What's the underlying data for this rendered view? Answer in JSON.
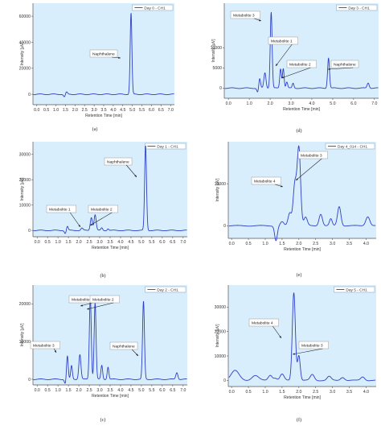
{
  "chart_data": [
    {
      "panel_label": "(a)",
      "type": "line",
      "legend": "Day 0 - CH1",
      "xlabel": "Retention Time [min]",
      "ylabel": "Intensity [µV]",
      "xlim": [
        -0.2,
        7.2
      ],
      "ylim": [
        -8000,
        70000
      ],
      "xticks": [
        "0.0",
        "0.5",
        "1.0",
        "1.5",
        "2.0",
        "2.5",
        "3.0",
        "3.5",
        "4.0",
        "4.5",
        "5.0",
        "5.5",
        "6.0",
        "6.5",
        "7.0"
      ],
      "yticks": [
        "0",
        "20000",
        "40000",
        "60000"
      ],
      "yticks_values": [
        0,
        20000,
        40000,
        60000
      ],
      "peaks": [
        {
          "x": 1.45,
          "h": -2200,
          "w": 0.05
        },
        {
          "x": 1.55,
          "h": 1800,
          "w": 0.05
        },
        {
          "x": 4.93,
          "h": 62500,
          "w": 0.045
        }
      ],
      "annotations": [
        {
          "text": "Naphthalene",
          "peak_x": 4.93
        }
      ]
    },
    {
      "panel_label": "(b)",
      "type": "line",
      "legend": "Day 1 - CH1",
      "xlabel": "Retention Time [min]",
      "ylabel": "Intensity [µV]",
      "xlim": [
        -0.2,
        7.2
      ],
      "ylim": [
        -2500,
        35000
      ],
      "xticks": [
        "0.0",
        "0.5",
        "1.0",
        "1.5",
        "2.0",
        "2.5",
        "3.0",
        "3.5",
        "4.0",
        "4.5",
        "5.0",
        "5.5",
        "6.0",
        "6.5",
        "7.0"
      ],
      "yticks": [
        "0",
        "10000",
        "20000",
        "30000"
      ],
      "yticks_values": [
        0,
        10000,
        20000,
        30000
      ],
      "peaks": [
        {
          "x": 1.35,
          "h": -1200,
          "w": 0.04
        },
        {
          "x": 1.45,
          "h": 1600,
          "w": 0.04
        },
        {
          "x": 2.15,
          "h": 900,
          "w": 0.05
        },
        {
          "x": 2.6,
          "h": 5200,
          "w": 0.05
        },
        {
          "x": 2.78,
          "h": 6200,
          "w": 0.05
        },
        {
          "x": 3.1,
          "h": 1000,
          "w": 0.04
        },
        {
          "x": 3.4,
          "h": 700,
          "w": 0.04
        },
        {
          "x": 5.2,
          "h": 33500,
          "w": 0.045
        }
      ],
      "annotations": [
        {
          "text": "Metabolite 1",
          "peak_x": 2.6
        },
        {
          "text": "Metabolite 2",
          "peak_x": 2.78
        },
        {
          "text": "Naphthalene",
          "peak_x": 5.2
        }
      ]
    },
    {
      "panel_label": "(c)",
      "type": "line",
      "legend": "Day 2 - CH1",
      "xlabel": "Retention Time [min]",
      "ylabel": "Intensity [µV]",
      "xlim": [
        -0.2,
        7.2
      ],
      "ylim": [
        -1500,
        25000
      ],
      "xticks": [
        "0.0",
        "0.5",
        "1.0",
        "1.5",
        "2.0",
        "2.5",
        "3.0",
        "3.5",
        "4.0",
        "4.5",
        "5.0",
        "5.5",
        "6.0",
        "6.5",
        "7.0"
      ],
      "yticks": [
        "0",
        "10000",
        "20000"
      ],
      "yticks_values": [
        0,
        10000,
        20000
      ],
      "peaks": [
        {
          "x": 1.35,
          "h": -1200,
          "w": 0.04
        },
        {
          "x": 1.45,
          "h": 6200,
          "w": 0.04
        },
        {
          "x": 1.65,
          "h": 3600,
          "w": 0.04
        },
        {
          "x": 2.05,
          "h": 6600,
          "w": 0.05
        },
        {
          "x": 2.55,
          "h": 22000,
          "w": 0.045
        },
        {
          "x": 2.78,
          "h": 20300,
          "w": 0.045
        },
        {
          "x": 3.1,
          "h": 3700,
          "w": 0.04
        },
        {
          "x": 3.4,
          "h": 3300,
          "w": 0.04
        },
        {
          "x": 5.1,
          "h": 20700,
          "w": 0.045
        },
        {
          "x": 6.7,
          "h": 1800,
          "w": 0.05
        }
      ],
      "annotations": [
        {
          "text": "Metabolite 3",
          "peak_x": 2.05
        },
        {
          "text": "Metabolite 1",
          "peak_x": 2.55
        },
        {
          "text": "Metabolite 2",
          "peak_x": 2.78
        },
        {
          "text": "Naphthalene",
          "peak_x": 5.1
        }
      ]
    },
    {
      "panel_label": "(d)",
      "type": "line",
      "legend": "Day 3 - CH1",
      "xlabel": "Retention Time [min]",
      "ylabel": "Intensity [µV]",
      "xlim": [
        -0.2,
        7.2
      ],
      "ylim": [
        -2500,
        21000
      ],
      "xticks": [
        "0.0",
        "1.0",
        "2.0",
        "3.0",
        "4.0",
        "5.0",
        "6.0",
        "7.0"
      ],
      "yticks": [
        "0",
        "5000",
        "10000"
      ],
      "yticks_values": [
        0,
        5000,
        10000
      ],
      "peaks": [
        {
          "x": 1.4,
          "h": -1000,
          "w": 0.04
        },
        {
          "x": 1.5,
          "h": 2300,
          "w": 0.04
        },
        {
          "x": 1.75,
          "h": 3800,
          "w": 0.05
        },
        {
          "x": 2.05,
          "h": 18800,
          "w": 0.045
        },
        {
          "x": 2.5,
          "h": 4800,
          "w": 0.04
        },
        {
          "x": 2.63,
          "h": 4900,
          "w": 0.04
        },
        {
          "x": 2.8,
          "h": 1500,
          "w": 0.04
        },
        {
          "x": 3.1,
          "h": 1200,
          "w": 0.04
        },
        {
          "x": 4.8,
          "h": 7500,
          "w": 0.045
        },
        {
          "x": 6.7,
          "h": 1300,
          "w": 0.05
        }
      ],
      "annotations": [
        {
          "text": "Metabolite 3",
          "peak_x": 2.05
        },
        {
          "text": "Metabolite 1",
          "peak_x": 2.5
        },
        {
          "text": "Metabolite 2",
          "peak_x": 2.63
        },
        {
          "text": "Naphthalene",
          "peak_x": 4.8
        }
      ]
    },
    {
      "panel_label": "(e)",
      "type": "line",
      "legend": "Day 4_014 - CH1",
      "xlabel": "Retention Time [min]",
      "ylabel": "Intensity [µV]",
      "xlim": [
        -0.1,
        4.3
      ],
      "ylim": [
        -3000,
        20000
      ],
      "xticks": [
        "0.0",
        "0.5",
        "1.0",
        "1.5",
        "2.0",
        "2.5",
        "3.0",
        "3.5",
        "4.0"
      ],
      "yticks": [
        "0",
        "10000"
      ],
      "yticks_values": [
        0,
        10000
      ],
      "peaks": [
        {
          "x": 1.32,
          "h": -3500,
          "w": 0.04
        },
        {
          "x": 1.5,
          "h": 900,
          "w": 0.05
        },
        {
          "x": 1.73,
          "h": 3000,
          "w": 0.05
        },
        {
          "x": 1.88,
          "h": 9800,
          "w": 0.05
        },
        {
          "x": 2.0,
          "h": 18500,
          "w": 0.05
        },
        {
          "x": 2.2,
          "h": 2000,
          "w": 0.05
        },
        {
          "x": 2.65,
          "h": 2800,
          "w": 0.05
        },
        {
          "x": 2.95,
          "h": 1600,
          "w": 0.04
        },
        {
          "x": 3.2,
          "h": 4600,
          "w": 0.05
        },
        {
          "x": 4.05,
          "h": 2200,
          "w": 0.06
        }
      ],
      "annotations": [
        {
          "text": "Metabolite 4",
          "peak_x": 1.88
        },
        {
          "text": "Metabolite 3",
          "peak_x": 2.0
        }
      ]
    },
    {
      "panel_label": "(f)",
      "type": "line",
      "legend": "Day 5 - CH1",
      "xlabel": "Retention Time [min]",
      "ylabel": "Intensity [µV]",
      "xlim": [
        -0.1,
        4.3
      ],
      "ylim": [
        -2500,
        39000
      ],
      "xticks": [
        "0.0",
        "0.5",
        "1.0",
        "1.5",
        "2.0",
        "2.5",
        "3.0",
        "3.5",
        "4.0"
      ],
      "yticks": [
        "0",
        "10000",
        "20000",
        "30000"
      ],
      "yticks_values": [
        0,
        10000,
        20000,
        30000
      ],
      "peaks": [
        {
          "x": 0.1,
          "h": 4000,
          "w": 0.12
        },
        {
          "x": 0.7,
          "h": 2000,
          "w": 0.1
        },
        {
          "x": 1.15,
          "h": 2200,
          "w": 0.06
        },
        {
          "x": 1.3,
          "h": 900,
          "w": 0.05
        },
        {
          "x": 1.5,
          "h": 2500,
          "w": 0.06
        },
        {
          "x": 1.85,
          "h": 36000,
          "w": 0.045
        },
        {
          "x": 2.0,
          "h": 10200,
          "w": 0.04
        },
        {
          "x": 2.4,
          "h": 2400,
          "w": 0.06
        },
        {
          "x": 2.9,
          "h": 1600,
          "w": 0.06
        },
        {
          "x": 3.3,
          "h": 1300,
          "w": 0.06
        },
        {
          "x": 3.9,
          "h": 1500,
          "w": 0.06
        }
      ],
      "annotations": [
        {
          "text": "Metabolite 4",
          "peak_x": 1.85
        },
        {
          "text": "Metabolite 3",
          "peak_x": 2.0
        }
      ]
    }
  ]
}
